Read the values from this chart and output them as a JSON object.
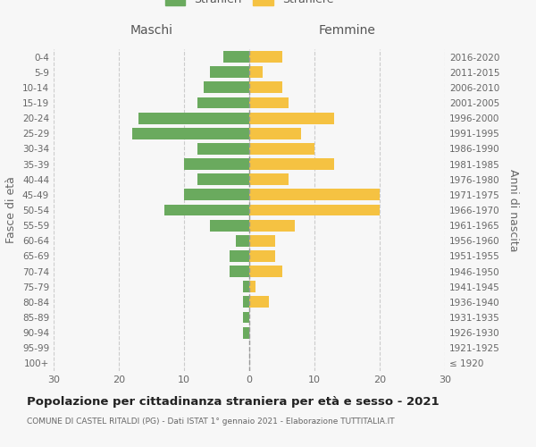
{
  "age_groups": [
    "100+",
    "95-99",
    "90-94",
    "85-89",
    "80-84",
    "75-79",
    "70-74",
    "65-69",
    "60-64",
    "55-59",
    "50-54",
    "45-49",
    "40-44",
    "35-39",
    "30-34",
    "25-29",
    "20-24",
    "15-19",
    "10-14",
    "5-9",
    "0-4"
  ],
  "anni_nascita": [
    "≤ 1920",
    "1921-1925",
    "1926-1930",
    "1931-1935",
    "1936-1940",
    "1941-1945",
    "1946-1950",
    "1951-1955",
    "1956-1960",
    "1961-1965",
    "1966-1970",
    "1971-1975",
    "1976-1980",
    "1981-1985",
    "1986-1990",
    "1991-1995",
    "1996-2000",
    "2001-2005",
    "2006-2010",
    "2011-2015",
    "2016-2020"
  ],
  "maschi": [
    0,
    0,
    1,
    1,
    1,
    1,
    3,
    3,
    2,
    6,
    13,
    10,
    8,
    10,
    8,
    18,
    17,
    8,
    7,
    6,
    4
  ],
  "femmine": [
    0,
    0,
    0,
    0,
    3,
    1,
    5,
    4,
    4,
    7,
    20,
    20,
    6,
    13,
    10,
    8,
    13,
    6,
    5,
    2,
    5
  ],
  "color_maschi": "#6aaa5e",
  "color_femmine": "#f5c242",
  "background_color": "#f7f7f7",
  "title": "Popolazione per cittadinanza straniera per età e sesso - 2021",
  "subtitle": "COMUNE DI CASTEL RITALDI (PG) - Dati ISTAT 1° gennaio 2021 - Elaborazione TUTTITALIA.IT",
  "header_left": "Maschi",
  "header_right": "Femmine",
  "ylabel_left": "Fasce di età",
  "ylabel_right": "Anni di nascita",
  "xlim": 30
}
